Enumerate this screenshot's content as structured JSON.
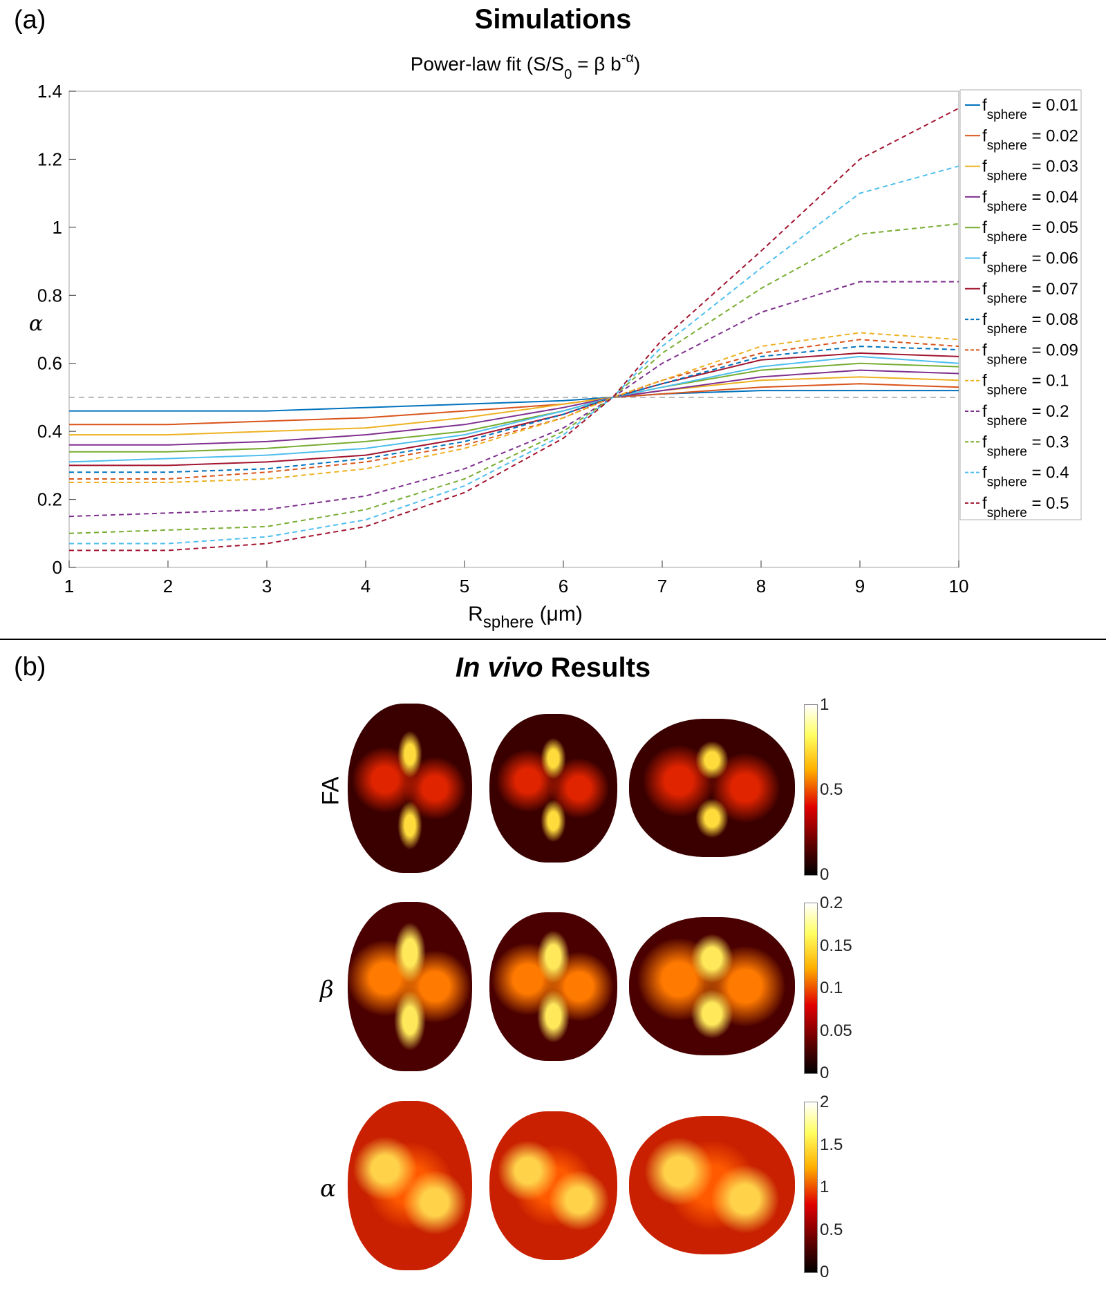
{
  "panel_a": {
    "label": "(a)",
    "title": "Simulations"
  },
  "panel_b": {
    "label": "(b)",
    "title_italic": "In vivo",
    "title_rest": " Results"
  },
  "chart_data": {
    "type": "line",
    "title": "Power-law fit (S/S0 = β b-α)",
    "title_parts": {
      "pre": "Power-law fit (S/S",
      "sub0": "0",
      "mid": " = β b",
      "sup": "-α",
      "post": ")"
    },
    "xlabel": "Rsphere (μm)",
    "xlabel_parts": {
      "main": "R",
      "sub": "sphere",
      "rest": " (μm)"
    },
    "ylabel": "α",
    "xlim": [
      1,
      10
    ],
    "ylim": [
      0,
      1.4
    ],
    "xticks": [
      1,
      2,
      3,
      4,
      5,
      6,
      7,
      8,
      9,
      10
    ],
    "yticks": [
      0,
      0.2,
      0.4,
      0.6,
      0.8,
      1,
      1.2,
      1.4
    ],
    "ytick_labels": [
      "0",
      "0.2",
      "0.4",
      "0.6",
      "0.8",
      "1",
      "1.2",
      "1.4"
    ],
    "reference_line": {
      "y": 0.5,
      "style": "dashed",
      "color": "#aaaaaa"
    },
    "legend_placement": "right, outside",
    "x": [
      1,
      2,
      3,
      4,
      5,
      6,
      6.5,
      7,
      8,
      9,
      10
    ],
    "series": [
      {
        "name": "fsphere = 0.01",
        "f": "0.01",
        "style": "solid",
        "color": "#0072BD",
        "values": [
          0.46,
          0.46,
          0.46,
          0.47,
          0.48,
          0.49,
          0.5,
          0.51,
          0.52,
          0.52,
          0.52
        ]
      },
      {
        "name": "fsphere = 0.02",
        "f": "0.02",
        "style": "solid",
        "color": "#D95319",
        "values": [
          0.42,
          0.42,
          0.43,
          0.44,
          0.46,
          0.48,
          0.5,
          0.51,
          0.53,
          0.54,
          0.53
        ]
      },
      {
        "name": "fsphere = 0.03",
        "f": "0.03",
        "style": "solid",
        "color": "#EDB120",
        "values": [
          0.39,
          0.39,
          0.4,
          0.41,
          0.44,
          0.48,
          0.5,
          0.52,
          0.55,
          0.56,
          0.55
        ]
      },
      {
        "name": "fsphere = 0.04",
        "f": "0.04",
        "style": "solid",
        "color": "#7E2F8E",
        "values": [
          0.36,
          0.36,
          0.37,
          0.39,
          0.42,
          0.47,
          0.5,
          0.52,
          0.56,
          0.58,
          0.57
        ]
      },
      {
        "name": "fsphere = 0.05",
        "f": "0.05",
        "style": "solid",
        "color": "#77AC30",
        "values": [
          0.34,
          0.34,
          0.35,
          0.37,
          0.4,
          0.46,
          0.5,
          0.53,
          0.58,
          0.6,
          0.59
        ]
      },
      {
        "name": "fsphere = 0.06",
        "f": "0.06",
        "style": "solid",
        "color": "#4DBEEE",
        "values": [
          0.31,
          0.32,
          0.33,
          0.35,
          0.39,
          0.46,
          0.5,
          0.53,
          0.59,
          0.62,
          0.6
        ]
      },
      {
        "name": "fsphere = 0.07",
        "f": "0.07",
        "style": "solid",
        "color": "#A2142F",
        "values": [
          0.3,
          0.3,
          0.31,
          0.33,
          0.38,
          0.45,
          0.5,
          0.54,
          0.61,
          0.63,
          0.62
        ]
      },
      {
        "name": "fsphere = 0.08",
        "f": "0.08",
        "style": "dashed",
        "color": "#0072BD",
        "values": [
          0.28,
          0.28,
          0.29,
          0.32,
          0.37,
          0.45,
          0.5,
          0.54,
          0.62,
          0.65,
          0.64
        ]
      },
      {
        "name": "fsphere = 0.09",
        "f": "0.09",
        "style": "dashed",
        "color": "#D95319",
        "values": [
          0.26,
          0.26,
          0.28,
          0.31,
          0.36,
          0.44,
          0.5,
          0.55,
          0.63,
          0.67,
          0.65
        ]
      },
      {
        "name": "fsphere = 0.1",
        "f": "0.1",
        "style": "dashed",
        "color": "#EDB120",
        "values": [
          0.25,
          0.25,
          0.26,
          0.29,
          0.35,
          0.44,
          0.5,
          0.55,
          0.65,
          0.69,
          0.67
        ]
      },
      {
        "name": "fsphere = 0.2",
        "f": "0.2",
        "style": "dashed",
        "color": "#7E2F8E",
        "values": [
          0.15,
          0.16,
          0.17,
          0.21,
          0.29,
          0.41,
          0.5,
          0.6,
          0.75,
          0.84,
          0.84
        ]
      },
      {
        "name": "fsphere = 0.3",
        "f": "0.3",
        "style": "dashed",
        "color": "#77AC30",
        "values": [
          0.1,
          0.11,
          0.12,
          0.17,
          0.26,
          0.4,
          0.5,
          0.63,
          0.82,
          0.98,
          1.01
        ]
      },
      {
        "name": "fsphere = 0.4",
        "f": "0.4",
        "style": "dashed",
        "color": "#4DBEEE",
        "values": [
          0.07,
          0.07,
          0.09,
          0.14,
          0.24,
          0.39,
          0.5,
          0.65,
          0.88,
          1.1,
          1.18
        ]
      },
      {
        "name": "fsphere = 0.5",
        "f": "0.5",
        "style": "dashed",
        "color": "#A2142F",
        "values": [
          0.05,
          0.05,
          0.07,
          0.12,
          0.22,
          0.38,
          0.5,
          0.67,
          0.93,
          1.2,
          1.35
        ]
      }
    ]
  },
  "maps": [
    {
      "label": "FA",
      "label_italic": false,
      "colorbar_ticks": [
        "1",
        "0.5",
        "0"
      ]
    },
    {
      "label": "β",
      "label_italic": true,
      "colorbar_ticks": [
        "0.2",
        "0.15",
        "0.1",
        "0.05",
        "0"
      ]
    },
    {
      "label": "α",
      "label_italic": true,
      "colorbar_ticks": [
        "2",
        "1.5",
        "1",
        "0.5",
        "0"
      ]
    }
  ]
}
